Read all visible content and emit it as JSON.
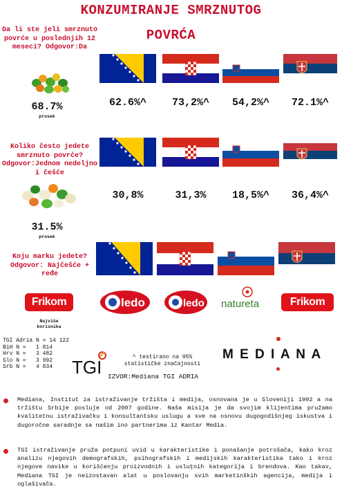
{
  "title": {
    "line1": "KONZUMIRANJE SMRZNUTOG",
    "line2": "POVRĆA"
  },
  "q1": {
    "question": "Da li ste jeli smrznuto povrće u poslednjih 12 meseci? Odgovor:Da",
    "avg": "68.7%",
    "avg_label": "prosek",
    "values": [
      "62.6%^",
      "73,2%^",
      "54,2%^",
      "72.1%^"
    ]
  },
  "q2": {
    "question": "Koliko često jedete smrznuto povrće? Odgovor:Jednom nedeljno i češće",
    "avg": "31.5%",
    "avg_label": "prosek",
    "values": [
      "30,8%",
      "31,3%",
      "18,5%^",
      "36,4%^"
    ]
  },
  "q3": {
    "question": "Koju marku jedete? Odgovor: Najčešće + ređe",
    "brands": [
      "Frikom",
      "ledo",
      "ledo",
      "natureta",
      "Frikom"
    ],
    "most_users": "Najviše korisnika"
  },
  "sample": {
    "lines": [
      "TGI Adria N = 14 122",
      "BiH N =   1 814",
      "Hrv N =   3 482",
      "Slo N =   3 992",
      "Srb N =   4 834"
    ]
  },
  "tgi": {
    "logo": "TGI",
    "note1": "^ testirano na 95%",
    "note2": "statističke značajnosti",
    "source": "IZVOR:Mediana TGI ADRIA"
  },
  "mediana": {
    "logo": "M E D I A N A"
  },
  "paragraphs": [
    "Mediana, Institut za istraživanje tržišta i medija, osnovana je  u Sloveniji 1992 a na tržištu Srbije posluje od 2007 godine. Naša misija je da svojim klijentima pružamo kvalitetnu istraživačku i konsultantsku uslugu a sve na osnovu dugogodišnjeg iskustva i dugoročne saradnje sa našim ino partnerima iz Kantar Media.",
    "TGI istraživanje pruža potpuni uvid u karakteristike i ponašanje potrošača, kako kroz analizu njegovih demografskih, psihografskih i medijskih karakteristika tako i kroz njegove navike u korišćenju proizvodnih i usluţnih kategorija i brendova. Kao takav, Mediana TGI je neizostavan alat u poslovanju svih marketinških agencija, medija i oglašivača."
  ],
  "colors": {
    "accent": "#c8102e",
    "bosnia_blue": "#002395",
    "bosnia_yellow": "#fecb00",
    "red": "#d52b1e",
    "blue": "#0c4076"
  }
}
